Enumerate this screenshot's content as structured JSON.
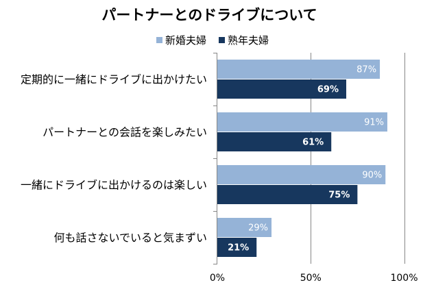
{
  "chart_data": {
    "type": "bar",
    "orientation": "horizontal",
    "title": "パートナーとのドライブについて",
    "categories": [
      "定期的に一緒にドライブに出かけたい",
      "パートナーとの会話を楽しみたい",
      "一緒にドライブに出かけるのは楽しい",
      "何も話さないでいると気まずい"
    ],
    "series": [
      {
        "name": "新婚夫婦",
        "color": "#95B3D7",
        "values": [
          87,
          91,
          90,
          29
        ],
        "data_labels": [
          "87%",
          "91%",
          "90%",
          "29%"
        ]
      },
      {
        "name": "熟年夫婦",
        "color": "#17375E",
        "values": [
          69,
          61,
          75,
          21
        ],
        "data_labels": [
          "69%",
          "61%",
          "75%",
          "21%"
        ]
      }
    ],
    "xlim": [
      0,
      100
    ],
    "x_ticks": [
      0,
      50,
      100
    ],
    "x_tick_labels": [
      "0%",
      "50%",
      "100%"
    ],
    "grid": {
      "x": true,
      "y": false
    },
    "legend": "top",
    "data_label_color": "#FFFFFF",
    "gridline_color": "#868686"
  }
}
